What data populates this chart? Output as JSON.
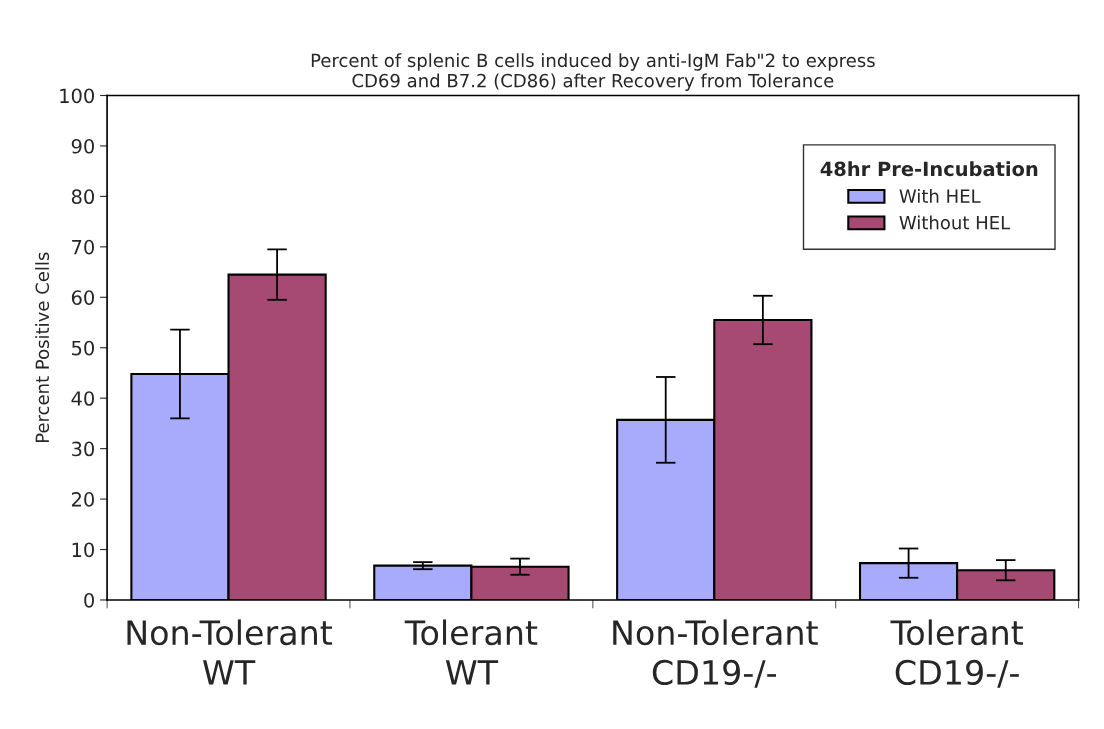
{
  "chart_data": {
    "type": "bar",
    "title": "Percent of splenic B cells induced by anti-IgM Fab\"2 to express\nCD69 and B7.2 (CD86) after Recovery from Tolerance",
    "ylabel": "Percent Positive Cells",
    "legend_title": "48hr Pre-Incubation",
    "categories": [
      "Non-Tolerant\nWT",
      "Tolerant\nWT",
      "Non-Tolerant\nCD19-/-",
      "Tolerant\nCD19-/-"
    ],
    "series": [
      {
        "name": "With HEL",
        "color": "#a8aafc",
        "values": [
          44.8,
          6.8,
          35.7,
          7.3
        ],
        "errors": [
          8.8,
          0.7,
          8.5,
          2.9
        ]
      },
      {
        "name": "Without HEL",
        "color": "#a64a74",
        "values": [
          64.5,
          6.6,
          55.5,
          5.9
        ],
        "errors": [
          5.0,
          1.6,
          4.8,
          2.0
        ]
      }
    ],
    "ylim": [
      0,
      100
    ],
    "yticks": [
      0,
      10,
      20,
      30,
      40,
      50,
      60,
      70,
      80,
      90,
      100
    ],
    "grid": false,
    "legend": "top right"
  }
}
